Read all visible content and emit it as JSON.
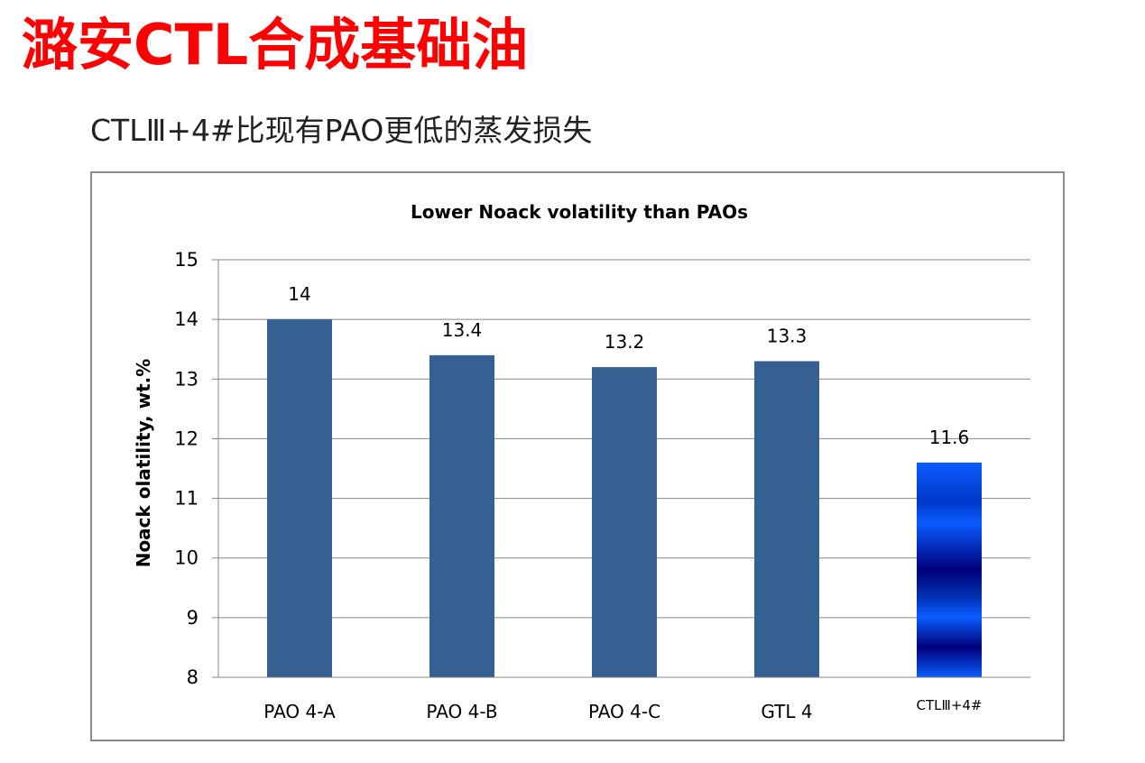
{
  "slide": {
    "title": "潞安CTL合成基础油",
    "subtitle": "CTLⅢ+4#比现有PAO更低的蒸发损失"
  },
  "colors": {
    "title": "#ff0000",
    "bar": "#376092",
    "highlight_light": "#0a5cff",
    "highlight_dark": "#00007a",
    "grid": "#868686"
  },
  "chart_data": {
    "type": "bar",
    "title": "Lower Noack volatility than PAOs",
    "xlabel": "",
    "ylabel": "Noack olatility, wt.%",
    "categories": [
      "PAO 4-A",
      "PAO 4-B",
      "PAO 4-C",
      "GTL 4",
      "CTLⅢ+4#"
    ],
    "values": [
      14,
      13.4,
      13.2,
      13.3,
      11.6
    ],
    "data_labels": [
      "14",
      "13.4",
      "13.2",
      "13.3",
      "11.6"
    ],
    "highlight_index": 4,
    "ylim": [
      8,
      15
    ],
    "yticks": [
      8,
      9,
      10,
      11,
      12,
      13,
      14,
      15
    ],
    "grid": true,
    "legend": "none"
  }
}
